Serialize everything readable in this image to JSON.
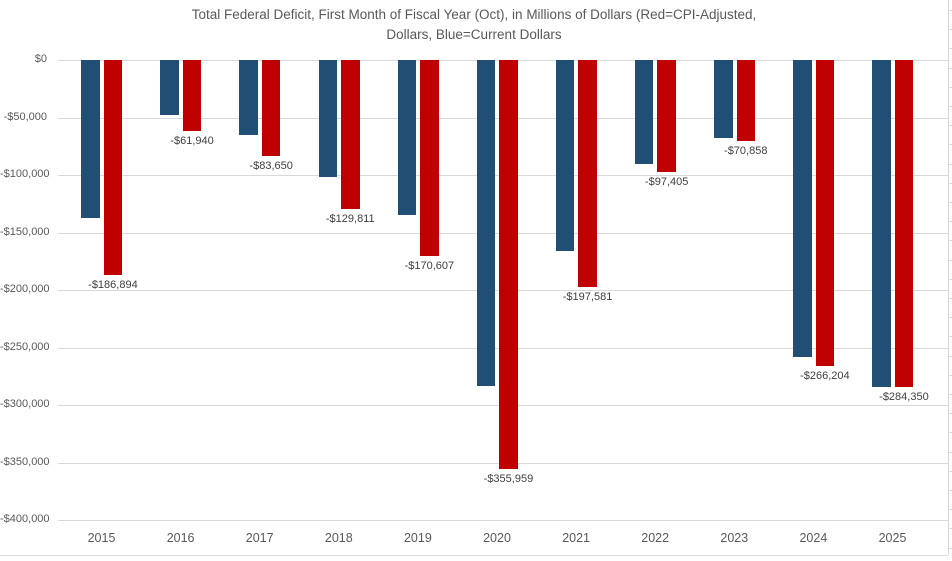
{
  "title": {
    "line1": "Total Federal Deficit, First Month of Fiscal Year (Oct), in Millions of Dollars (Red=CPI-Adjusted,",
    "line2": "Dollars, Blue=Current Dollars"
  },
  "colors": {
    "current_dollars_bar": "#204e75",
    "cpi_adjusted_bar": "#c00000",
    "gridline": "#d9d9d9",
    "axis_text": "#595959",
    "data_label_text": "#404040"
  },
  "chart_data": {
    "type": "bar",
    "title": "Total Federal Deficit, First Month of Fiscal Year (Oct), in Millions of Dollars (Red=CPI-Adjusted, Dollars, Blue=Current Dollars",
    "categories": [
      "2015",
      "2016",
      "2017",
      "2018",
      "2019",
      "2020",
      "2021",
      "2022",
      "2023",
      "2024",
      "2025"
    ],
    "series": [
      {
        "name": "Current Dollars",
        "color": "#204e75",
        "values": [
          -137000,
          -47500,
          -65500,
          -101500,
          -134500,
          -283500,
          -166000,
          -90000,
          -68000,
          -258000,
          -284350
        ],
        "values_are_estimated": true
      },
      {
        "name": "CPI-Adjusted Dollars",
        "color": "#c00000",
        "values": [
          -186894,
          -61940,
          -83650,
          -129811,
          -170607,
          -355959,
          -197581,
          -97405,
          -70858,
          -266204,
          -284350
        ],
        "data_labels": [
          "-$186,894",
          "-$61,940",
          "-$83,650",
          "-$129,811",
          "-$170,607",
          "-$355,959",
          "-$197,581",
          "-$97,405",
          "-$70,858",
          "-$266,204",
          "-$284,350"
        ]
      }
    ],
    "xlabel": "",
    "ylabel": "",
    "y_axis": {
      "tick_labels": [
        "$0",
        "-$50,000",
        "-$100,000",
        "-$150,000",
        "-$200,000",
        "-$250,000",
        "-$300,000",
        "-$350,000",
        "-$400,000"
      ],
      "tick_values": [
        0,
        -50000,
        -100000,
        -150000,
        -200000,
        -250000,
        -300000,
        -350000,
        -400000
      ],
      "min": -400000,
      "max": 0
    },
    "grid": true,
    "legend_position": "none"
  }
}
